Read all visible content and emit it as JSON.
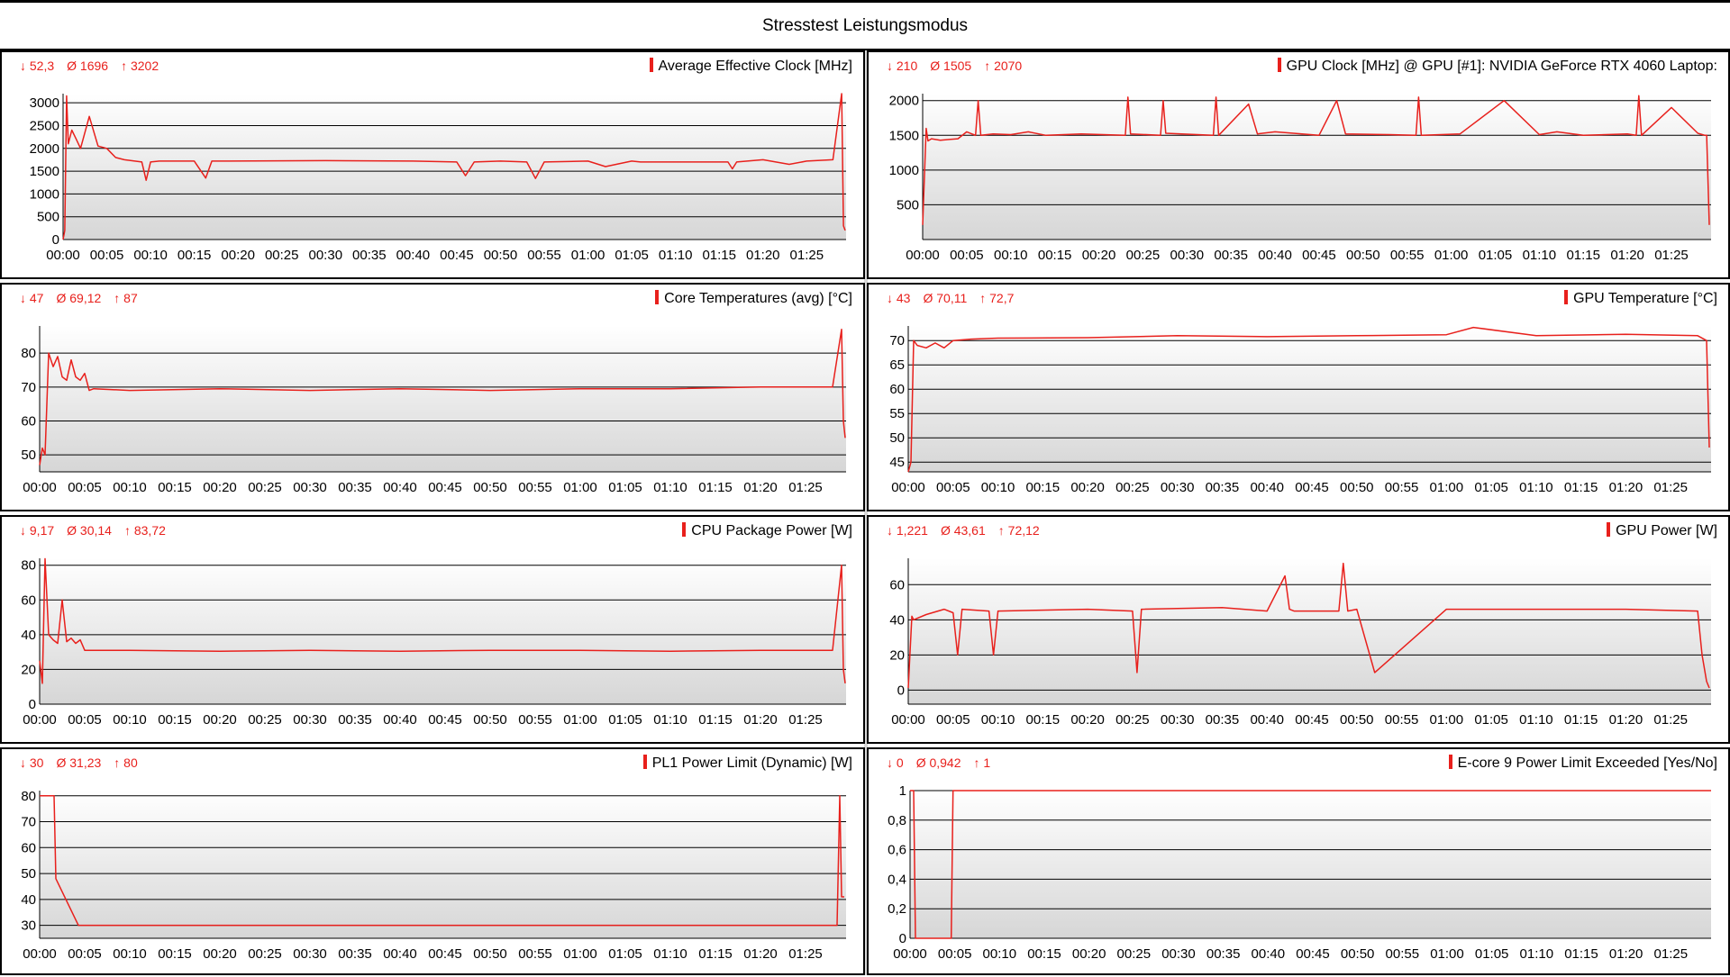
{
  "title": "Stresstest Leistungsmodus",
  "colors": {
    "line": "#e8201c",
    "grid": "#000000",
    "fill_top": "#ffffff",
    "fill_bottom": "#d6d6d6"
  },
  "chart_data": [
    {
      "type": "line",
      "title": "Average Effective Clock [MHz]",
      "stats": {
        "min": "↓ 52,3",
        "avg": "Ø 1696",
        "max": "↑ 3202"
      },
      "x_ticks": [
        "00:00",
        "00:05",
        "00:10",
        "00:15",
        "00:20",
        "00:25",
        "00:30",
        "00:35",
        "00:40",
        "00:45",
        "00:50",
        "00:55",
        "01:00",
        "01:05",
        "01:10",
        "01:15",
        "01:20",
        "01:25"
      ],
      "x_range": [
        0,
        89.5
      ],
      "ylim": [
        0,
        3200
      ],
      "y_ticks": [
        0,
        500,
        1000,
        1500,
        2000,
        2500,
        3000
      ],
      "y_tick_labels": [
        "0",
        "500",
        "1000",
        "1500",
        "2000",
        "2500",
        "3000"
      ],
      "series": [
        {
          "x": [
            0,
            0.2,
            0.4,
            0.6,
            1,
            1.5,
            2,
            3,
            4,
            5,
            6,
            7,
            9,
            9.5,
            10,
            11,
            15,
            16.3,
            17,
            30,
            40,
            45,
            46,
            47,
            50,
            53,
            54,
            55,
            60,
            62,
            65,
            66,
            70,
            76,
            76.5,
            77,
            80,
            83,
            85,
            88,
            89,
            89.2,
            89.4
          ],
          "values": [
            0,
            200,
            3150,
            2100,
            2400,
            2200,
            2000,
            2700,
            2050,
            2000,
            1800,
            1750,
            1700,
            1300,
            1700,
            1720,
            1720,
            1350,
            1720,
            1730,
            1720,
            1700,
            1400,
            1700,
            1720,
            1700,
            1340,
            1700,
            1720,
            1600,
            1720,
            1700,
            1700,
            1700,
            1550,
            1700,
            1750,
            1650,
            1720,
            1750,
            3200,
            300,
            200
          ]
        }
      ]
    },
    {
      "type": "line",
      "title": "GPU Clock [MHz] @ GPU [#1]: NVIDIA GeForce RTX 4060 Laptop:",
      "stats": {
        "min": "↓ 210",
        "avg": "Ø 1505",
        "max": "↑ 2070"
      },
      "x_ticks": [
        "00:00",
        "00:05",
        "00:10",
        "00:15",
        "00:20",
        "00:25",
        "00:30",
        "00:35",
        "00:40",
        "00:45",
        "00:50",
        "00:55",
        "01:00",
        "01:05",
        "01:10",
        "01:15",
        "01:20",
        "01:25"
      ],
      "x_range": [
        0,
        89.5
      ],
      "ylim": [
        0,
        2100
      ],
      "y_ticks": [
        500,
        1000,
        1500,
        2000
      ],
      "y_tick_labels": [
        "500",
        "1000",
        "1500",
        "2000"
      ],
      "series": [
        {
          "x": [
            0,
            0.4,
            0.6,
            1,
            2,
            3,
            4,
            5,
            6,
            6.3,
            6.6,
            8,
            10,
            12,
            14,
            18,
            23,
            23.3,
            23.6,
            27,
            27.3,
            27.6,
            33,
            33.3,
            33.6,
            37,
            38,
            40,
            45,
            47,
            48,
            53,
            56,
            56.3,
            56.6,
            61,
            66,
            70,
            72,
            75,
            80,
            81,
            81.3,
            81.6,
            85,
            88,
            88.8,
            89,
            89.3
          ],
          "values": [
            210,
            1600,
            1420,
            1450,
            1430,
            1440,
            1450,
            1550,
            1500,
            2000,
            1500,
            1520,
            1510,
            1550,
            1500,
            1520,
            1500,
            2050,
            1520,
            1500,
            2000,
            1530,
            1500,
            2050,
            1500,
            1950,
            1520,
            1550,
            1500,
            2000,
            1520,
            1510,
            1500,
            2050,
            1500,
            1520,
            2000,
            1510,
            1550,
            1500,
            1520,
            1500,
            2070,
            1500,
            1900,
            1530,
            1500,
            1500,
            210
          ]
        }
      ]
    },
    {
      "type": "line",
      "title": "Core Temperatures (avg) [°C]",
      "stats": {
        "min": "↓ 47",
        "avg": "Ø 69,12",
        "max": "↑ 87"
      },
      "x_ticks": [
        "00:00",
        "00:05",
        "00:10",
        "00:15",
        "00:20",
        "00:25",
        "00:30",
        "00:35",
        "00:40",
        "00:45",
        "00:50",
        "00:55",
        "01:00",
        "01:05",
        "01:10",
        "01:15",
        "01:20",
        "01:25"
      ],
      "x_range": [
        0,
        89.5
      ],
      "ylim": [
        45,
        88
      ],
      "y_ticks": [
        50,
        60,
        70,
        80
      ],
      "y_tick_labels": [
        "50",
        "60",
        "70",
        "80"
      ],
      "series": [
        {
          "x": [
            0,
            0.3,
            0.6,
            1,
            1.5,
            2,
            2.5,
            3,
            3.5,
            4,
            4.5,
            5,
            5.5,
            6,
            10,
            20,
            30,
            40,
            50,
            60,
            70,
            80,
            88,
            89,
            89.2,
            89.4
          ],
          "values": [
            47,
            52,
            50,
            80,
            76,
            79,
            73,
            72,
            78,
            73,
            72,
            74,
            69,
            69.5,
            69,
            69.5,
            69,
            69.5,
            69,
            69.5,
            69.5,
            70,
            70,
            87,
            60,
            55
          ]
        }
      ]
    },
    {
      "type": "line",
      "title": "GPU Temperature [°C]",
      "stats": {
        "min": "↓ 43",
        "avg": "Ø 70,11",
        "max": "↑ 72,7"
      },
      "x_ticks": [
        "00:00",
        "00:05",
        "00:10",
        "00:15",
        "00:20",
        "00:25",
        "00:30",
        "00:35",
        "00:40",
        "00:45",
        "00:50",
        "00:55",
        "01:00",
        "01:05",
        "01:10",
        "01:15",
        "01:20",
        "01:25"
      ],
      "x_range": [
        0,
        89.5
      ],
      "ylim": [
        43,
        73
      ],
      "y_ticks": [
        45,
        50,
        55,
        60,
        65,
        70
      ],
      "y_tick_labels": [
        "45",
        "50",
        "55",
        "60",
        "65",
        "70"
      ],
      "series": [
        {
          "x": [
            0,
            0.3,
            0.6,
            1,
            2,
            3,
            4,
            5,
            7,
            10,
            20,
            30,
            40,
            50,
            60,
            63,
            70,
            80,
            88,
            89,
            89.3
          ],
          "values": [
            43,
            45,
            70,
            69,
            68.5,
            69.5,
            68.5,
            70,
            70.3,
            70.5,
            70.6,
            71,
            70.8,
            71,
            71.2,
            72.7,
            71,
            71.3,
            71,
            70,
            48
          ]
        }
      ]
    },
    {
      "type": "line",
      "title": "CPU Package Power [W]",
      "stats": {
        "min": "↓ 9,17",
        "avg": "Ø 30,14",
        "max": "↑ 83,72"
      },
      "x_ticks": [
        "00:00",
        "00:05",
        "00:10",
        "00:15",
        "00:20",
        "00:25",
        "00:30",
        "00:35",
        "00:40",
        "00:45",
        "00:50",
        "00:55",
        "01:00",
        "01:05",
        "01:10",
        "01:15",
        "01:20",
        "01:25"
      ],
      "x_range": [
        0,
        89.5
      ],
      "ylim": [
        0,
        84
      ],
      "y_ticks": [
        0,
        20,
        40,
        60,
        80
      ],
      "y_tick_labels": [
        "0",
        "20",
        "40",
        "60",
        "80"
      ],
      "series": [
        {
          "x": [
            0,
            0.3,
            0.6,
            1,
            1.5,
            2,
            2.5,
            3,
            3.5,
            4,
            4.5,
            5,
            10,
            20,
            30,
            40,
            50,
            60,
            70,
            80,
            88,
            89,
            89.2,
            89.4
          ],
          "values": [
            25,
            12,
            83.72,
            40,
            37,
            35,
            60,
            36,
            38,
            35,
            37,
            31,
            31,
            30.5,
            31,
            30.5,
            31,
            31,
            30.5,
            31,
            31,
            80,
            20,
            12
          ]
        }
      ]
    },
    {
      "type": "line",
      "title": "GPU Power [W]",
      "stats": {
        "min": "↓ 1,221",
        "avg": "Ø 43,61",
        "max": "↑ 72,12"
      },
      "x_ticks": [
        "00:00",
        "00:05",
        "00:10",
        "00:15",
        "00:20",
        "00:25",
        "00:30",
        "00:35",
        "00:40",
        "00:45",
        "00:50",
        "00:55",
        "01:00",
        "01:05",
        "01:10",
        "01:15",
        "01:20",
        "01:25"
      ],
      "x_range": [
        0,
        89.5
      ],
      "ylim": [
        -8,
        75
      ],
      "y_ticks": [
        0,
        20,
        40,
        60
      ],
      "y_tick_labels": [
        "0",
        "20",
        "40",
        "60"
      ],
      "series": [
        {
          "x": [
            0,
            0.4,
            0.6,
            2,
            4,
            5,
            5.5,
            6,
            9,
            9.5,
            10,
            20,
            25,
            25.5,
            26,
            35,
            40,
            42,
            42.5,
            43,
            48,
            48.5,
            49,
            50,
            52,
            60,
            70,
            80,
            88,
            88.5,
            89,
            89.3
          ],
          "values": [
            1.2,
            42,
            40,
            43,
            46,
            44,
            20,
            46,
            45,
            20,
            45,
            46,
            45,
            10,
            46,
            47,
            45,
            65,
            46,
            45,
            45,
            72.12,
            45,
            46,
            10,
            46,
            46,
            46,
            45,
            20,
            5,
            1.2
          ]
        }
      ]
    },
    {
      "type": "line",
      "title": "PL1 Power Limit (Dynamic) [W]",
      "stats": {
        "min": "↓ 30",
        "avg": "Ø 31,23",
        "max": "↑ 80"
      },
      "x_ticks": [
        "00:00",
        "00:05",
        "00:10",
        "00:15",
        "00:20",
        "00:25",
        "00:30",
        "00:35",
        "00:40",
        "00:45",
        "00:50",
        "00:55",
        "01:00",
        "01:05",
        "01:10",
        "01:15",
        "01:20",
        "01:25"
      ],
      "x_range": [
        0,
        89.5
      ],
      "ylim": [
        25,
        82
      ],
      "y_ticks": [
        30,
        40,
        50,
        60,
        70,
        80
      ],
      "y_tick_labels": [
        "30",
        "40",
        "50",
        "60",
        "70",
        "80"
      ],
      "series": [
        {
          "x": [
            0,
            1.6,
            1.8,
            4.3,
            10,
            20,
            40,
            60,
            88.5,
            88.8,
            89,
            89.3
          ],
          "values": [
            80,
            80,
            48,
            30,
            30,
            30,
            30,
            30,
            30,
            80,
            41,
            41
          ]
        }
      ]
    },
    {
      "type": "line",
      "title": "E-core 9 Power Limit Exceeded [Yes/No]",
      "stats": {
        "min": "↓ 0",
        "avg": "Ø 0,942",
        "max": "↑ 1"
      },
      "x_ticks": [
        "00:00",
        "00:05",
        "00:10",
        "00:15",
        "00:20",
        "00:25",
        "00:30",
        "00:35",
        "00:40",
        "00:45",
        "00:50",
        "00:55",
        "01:00",
        "01:05",
        "01:10",
        "01:15",
        "01:20",
        "01:25"
      ],
      "x_range": [
        0,
        89.5
      ],
      "ylim": [
        0,
        1
      ],
      "y_ticks": [
        0,
        0.2,
        0.4,
        0.6,
        0.8,
        1
      ],
      "y_tick_labels": [
        "0",
        "0,2",
        "0,4",
        "0,6",
        "0,8",
        "1"
      ],
      "series": [
        {
          "x": [
            0,
            0.4,
            0.6,
            4.6,
            4.8,
            89.5
          ],
          "values": [
            1,
            1,
            0,
            0,
            1,
            1
          ]
        }
      ]
    }
  ]
}
